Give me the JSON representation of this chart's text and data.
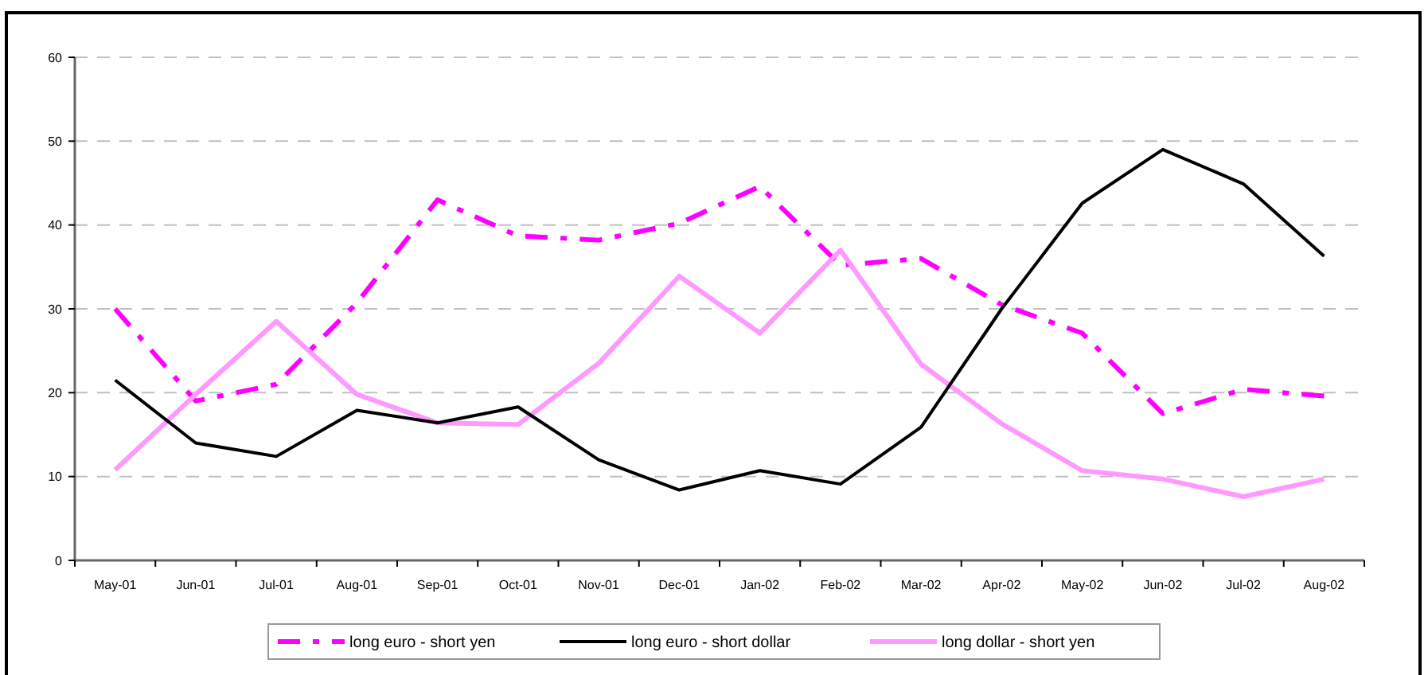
{
  "chart_data": {
    "type": "line",
    "categories": [
      "May-01",
      "Jun-01",
      "Jul-01",
      "Aug-01",
      "Sep-01",
      "Oct-01",
      "Nov-01",
      "Dec-01",
      "Jan-02",
      "Feb-02",
      "Mar-02",
      "Apr-02",
      "May-02",
      "Jun-02",
      "Jul-02",
      "Aug-02"
    ],
    "series": [
      {
        "name": "long euro - short yen",
        "color": "#ff00ff",
        "line_style": "dashed",
        "values": [
          30,
          19,
          21,
          30.7,
          43,
          38.7,
          38.2,
          40.2,
          44.6,
          35.2,
          36,
          30.5,
          27.1,
          17.5,
          20.4,
          19.6
        ]
      },
      {
        "name": "long euro - short dollar",
        "color": "#000000",
        "line_style": "solid",
        "values": [
          21.5,
          14,
          12.4,
          17.9,
          16.4,
          18.3,
          12,
          8.4,
          10.7,
          9.1,
          15.9,
          30,
          42.6,
          49,
          44.9,
          36.3
        ]
      },
      {
        "name": "long dollar - short yen",
        "color": "#ff99ff",
        "line_style": "solid",
        "values": [
          10.8,
          19.8,
          28.5,
          19.8,
          16.4,
          16.2,
          23.5,
          33.9,
          27.1,
          37,
          23.4,
          16.3,
          10.7,
          9.7,
          7.6,
          9.7
        ]
      }
    ],
    "ylim": [
      0,
      60
    ],
    "yticks": [
      0,
      10,
      20,
      30,
      40,
      50,
      60
    ],
    "grid": "y",
    "legend": "bottom"
  }
}
